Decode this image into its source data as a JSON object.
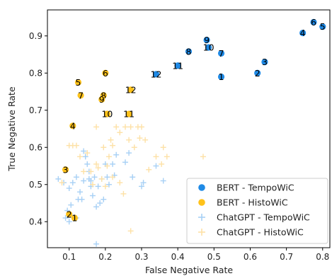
{
  "chart_data": {
    "type": "scatter",
    "xlabel": "False Negative Rate",
    "ylabel": "True Negative Rate",
    "xlim": [
      0.04,
      0.82
    ],
    "ylim": [
      0.33,
      0.97
    ],
    "xticks": [
      "0.1",
      "0.2",
      "0.3",
      "0.4",
      "0.5",
      "0.6",
      "0.7",
      "0.8"
    ],
    "yticks": [
      "0.4",
      "0.5",
      "0.6",
      "0.7",
      "0.8",
      "0.9"
    ],
    "legend_position": "bottom-right",
    "series": [
      {
        "name": "BERT - TempoWiC",
        "marker": "circle",
        "color": "#1f8ae6",
        "points": [
          {
            "label": "1",
            "x": 0.52,
            "y": 0.79
          },
          {
            "label": "2",
            "x": 0.62,
            "y": 0.8
          },
          {
            "label": "3",
            "x": 0.64,
            "y": 0.83
          },
          {
            "label": "4",
            "x": 0.745,
            "y": 0.908
          },
          {
            "label": "5",
            "x": 0.8,
            "y": 0.925
          },
          {
            "label": "6",
            "x": 0.775,
            "y": 0.937
          },
          {
            "label": "7",
            "x": 0.52,
            "y": 0.853
          },
          {
            "label": "8",
            "x": 0.43,
            "y": 0.858
          },
          {
            "label": "9",
            "x": 0.48,
            "y": 0.889
          },
          {
            "label": "10",
            "x": 0.485,
            "y": 0.869
          },
          {
            "label": "11",
            "x": 0.4,
            "y": 0.82
          },
          {
            "label": "12",
            "x": 0.34,
            "y": 0.797
          }
        ]
      },
      {
        "name": "BERT - HistoWiC",
        "marker": "circle",
        "color": "#ffc21a",
        "points": [
          {
            "label": "1",
            "x": 0.115,
            "y": 0.41
          },
          {
            "label": "2",
            "x": 0.1,
            "y": 0.42
          },
          {
            "label": "3",
            "x": 0.09,
            "y": 0.54
          },
          {
            "label": "4",
            "x": 0.11,
            "y": 0.658
          },
          {
            "label": "5",
            "x": 0.125,
            "y": 0.775
          },
          {
            "label": "6",
            "x": 0.2,
            "y": 0.8
          },
          {
            "label": "7",
            "x": 0.132,
            "y": 0.74
          },
          {
            "label": "8",
            "x": 0.195,
            "y": 0.74
          },
          {
            "label": "9",
            "x": 0.19,
            "y": 0.729
          },
          {
            "label": "10",
            "x": 0.205,
            "y": 0.69
          },
          {
            "label": "11",
            "x": 0.265,
            "y": 0.69
          },
          {
            "label": "12",
            "x": 0.27,
            "y": 0.755
          }
        ]
      },
      {
        "name": "ChatGPT - TempoWiC",
        "marker": "plus",
        "color": "#a7d0f5",
        "points": [
          {
            "x": 0.07,
            "y": 0.515
          },
          {
            "x": 0.085,
            "y": 0.505
          },
          {
            "x": 0.09,
            "y": 0.41
          },
          {
            "x": 0.095,
            "y": 0.43
          },
          {
            "x": 0.1,
            "y": 0.4
          },
          {
            "x": 0.105,
            "y": 0.445
          },
          {
            "x": 0.11,
            "y": 0.505
          },
          {
            "x": 0.1,
            "y": 0.49
          },
          {
            "x": 0.12,
            "y": 0.52
          },
          {
            "x": 0.125,
            "y": 0.46
          },
          {
            "x": 0.13,
            "y": 0.48
          },
          {
            "x": 0.135,
            "y": 0.46
          },
          {
            "x": 0.14,
            "y": 0.51
          },
          {
            "x": 0.145,
            "y": 0.575
          },
          {
            "x": 0.15,
            "y": 0.555
          },
          {
            "x": 0.155,
            "y": 0.535
          },
          {
            "x": 0.155,
            "y": 0.515
          },
          {
            "x": 0.16,
            "y": 0.51
          },
          {
            "x": 0.16,
            "y": 0.495
          },
          {
            "x": 0.165,
            "y": 0.47
          },
          {
            "x": 0.17,
            "y": 0.52
          },
          {
            "x": 0.175,
            "y": 0.44
          },
          {
            "x": 0.18,
            "y": 0.495
          },
          {
            "x": 0.185,
            "y": 0.45
          },
          {
            "x": 0.19,
            "y": 0.515
          },
          {
            "x": 0.195,
            "y": 0.46
          },
          {
            "x": 0.2,
            "y": 0.555
          },
          {
            "x": 0.205,
            "y": 0.52
          },
          {
            "x": 0.21,
            "y": 0.5
          },
          {
            "x": 0.22,
            "y": 0.555
          },
          {
            "x": 0.225,
            "y": 0.525
          },
          {
            "x": 0.23,
            "y": 0.58
          },
          {
            "x": 0.255,
            "y": 0.56
          },
          {
            "x": 0.265,
            "y": 0.585
          },
          {
            "x": 0.275,
            "y": 0.52
          },
          {
            "x": 0.3,
            "y": 0.495
          },
          {
            "x": 0.305,
            "y": 0.505
          },
          {
            "x": 0.34,
            "y": 0.55
          },
          {
            "x": 0.36,
            "y": 0.51
          },
          {
            "x": 0.175,
            "y": 0.34
          },
          {
            "x": 0.14,
            "y": 0.59
          },
          {
            "x": 0.12,
            "y": 0.41
          }
        ]
      },
      {
        "name": "ChatGPT - HistoWiC",
        "marker": "plus",
        "color": "#fde1a6",
        "points": [
          {
            "x": 0.08,
            "y": 0.505
          },
          {
            "x": 0.1,
            "y": 0.605
          },
          {
            "x": 0.11,
            "y": 0.605
          },
          {
            "x": 0.12,
            "y": 0.605
          },
          {
            "x": 0.13,
            "y": 0.575
          },
          {
            "x": 0.14,
            "y": 0.535
          },
          {
            "x": 0.15,
            "y": 0.585
          },
          {
            "x": 0.16,
            "y": 0.535
          },
          {
            "x": 0.165,
            "y": 0.5
          },
          {
            "x": 0.18,
            "y": 0.545
          },
          {
            "x": 0.19,
            "y": 0.515
          },
          {
            "x": 0.2,
            "y": 0.495
          },
          {
            "x": 0.205,
            "y": 0.55
          },
          {
            "x": 0.21,
            "y": 0.575
          },
          {
            "x": 0.215,
            "y": 0.62
          },
          {
            "x": 0.22,
            "y": 0.605
          },
          {
            "x": 0.23,
            "y": 0.655
          },
          {
            "x": 0.24,
            "y": 0.64
          },
          {
            "x": 0.255,
            "y": 0.655
          },
          {
            "x": 0.265,
            "y": 0.62
          },
          {
            "x": 0.27,
            "y": 0.655
          },
          {
            "x": 0.28,
            "y": 0.6
          },
          {
            "x": 0.29,
            "y": 0.655
          },
          {
            "x": 0.295,
            "y": 0.625
          },
          {
            "x": 0.3,
            "y": 0.655
          },
          {
            "x": 0.31,
            "y": 0.62
          },
          {
            "x": 0.32,
            "y": 0.54
          },
          {
            "x": 0.34,
            "y": 0.575
          },
          {
            "x": 0.355,
            "y": 0.555
          },
          {
            "x": 0.36,
            "y": 0.6
          },
          {
            "x": 0.37,
            "y": 0.575
          },
          {
            "x": 0.47,
            "y": 0.575
          },
          {
            "x": 0.27,
            "y": 0.375
          },
          {
            "x": 0.25,
            "y": 0.475
          },
          {
            "x": 0.24,
            "y": 0.505
          },
          {
            "x": 0.22,
            "y": 0.52
          },
          {
            "x": 0.175,
            "y": 0.555
          },
          {
            "x": 0.195,
            "y": 0.6
          },
          {
            "x": 0.175,
            "y": 0.655
          }
        ]
      }
    ]
  }
}
